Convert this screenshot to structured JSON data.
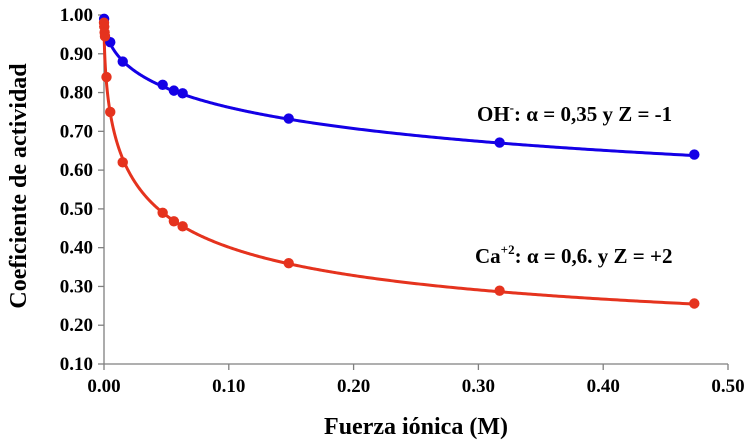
{
  "chart_data": {
    "type": "scatter",
    "xlabel": "Fuerza iónica (M)",
    "ylabel": "Coeficiente de actividad",
    "xlim": [
      0,
      0.5
    ],
    "ylim": [
      0.1,
      1.0
    ],
    "xticks": [
      "0.00",
      "0.10",
      "0.20",
      "0.30",
      "0.40",
      "0.50"
    ],
    "yticks": [
      "0.10",
      "0.20",
      "0.30",
      "0.40",
      "0.50",
      "0.60",
      "0.70",
      "0.80",
      "0.90",
      "1.00"
    ],
    "grid": false,
    "series": [
      {
        "name": "OH-",
        "color": "#1400e6",
        "x": [
          0.0001,
          0.005,
          0.015,
          0.047,
          0.056,
          0.063,
          0.148,
          0.317,
          0.473
        ],
        "values": [
          0.99,
          0.93,
          0.88,
          0.82,
          0.805,
          0.798,
          0.733,
          0.671,
          0.64
        ],
        "curve_params": {
          "alpha": 0.35,
          "z": -1
        }
      },
      {
        "name": "Ca+2",
        "color": "#e5331e",
        "x": [
          0.0,
          0.0002,
          0.0005,
          0.0008,
          0.002,
          0.005,
          0.015,
          0.047,
          0.056,
          0.063,
          0.148,
          0.317,
          0.473
        ],
        "values": [
          0.98,
          0.97,
          0.955,
          0.945,
          0.84,
          0.75,
          0.62,
          0.49,
          0.468,
          0.455,
          0.36,
          0.289,
          0.256
        ],
        "curve_params": {
          "alpha": 0.6,
          "z": 2
        }
      }
    ],
    "annotations": [
      {
        "series": "OH-",
        "base": "OH",
        "sup": "-",
        "rest": ": α = 0,35 y  Z = -1"
      },
      {
        "series": "Ca+2",
        "base": "Ca",
        "sup": "+2",
        "rest": ": α = 0,6. y Z = +2"
      }
    ]
  }
}
